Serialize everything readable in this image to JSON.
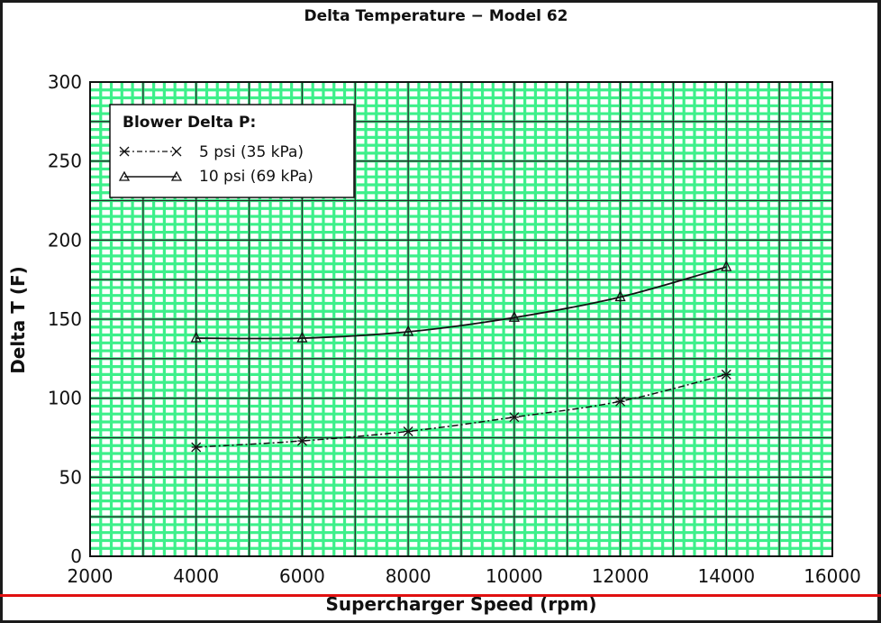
{
  "chart_data": {
    "type": "line",
    "title": "Delta Temperature − Model 62",
    "xlabel": "Supercharger Speed (rpm)",
    "ylabel": "Delta T (F)",
    "xlim": [
      2000,
      16000
    ],
    "ylim": [
      0,
      300
    ],
    "xticks": [
      "2000",
      "4000",
      "6000",
      "8000",
      "10000",
      "12000",
      "14000",
      "16000"
    ],
    "yticks": [
      "0",
      "50",
      "100",
      "150",
      "200",
      "250",
      "300"
    ],
    "grid": true,
    "grid_color": "#3df08a",
    "legend": {
      "title": "Blower Delta P:",
      "placement": "top-left"
    },
    "series": [
      {
        "name": "5 psi (35 kPa)",
        "marker": "x",
        "line_style": "dash-dot",
        "x": [
          4000,
          6000,
          8000,
          10000,
          12000,
          14000
        ],
        "y": [
          69,
          73,
          79,
          88,
          98,
          115
        ]
      },
      {
        "name": "10 psi (69 kPa)",
        "marker": "triangle",
        "line_style": "solid",
        "x": [
          4000,
          6000,
          8000,
          10000,
          12000,
          14000
        ],
        "y": [
          138,
          138,
          142,
          151,
          164,
          183
        ]
      }
    ]
  }
}
